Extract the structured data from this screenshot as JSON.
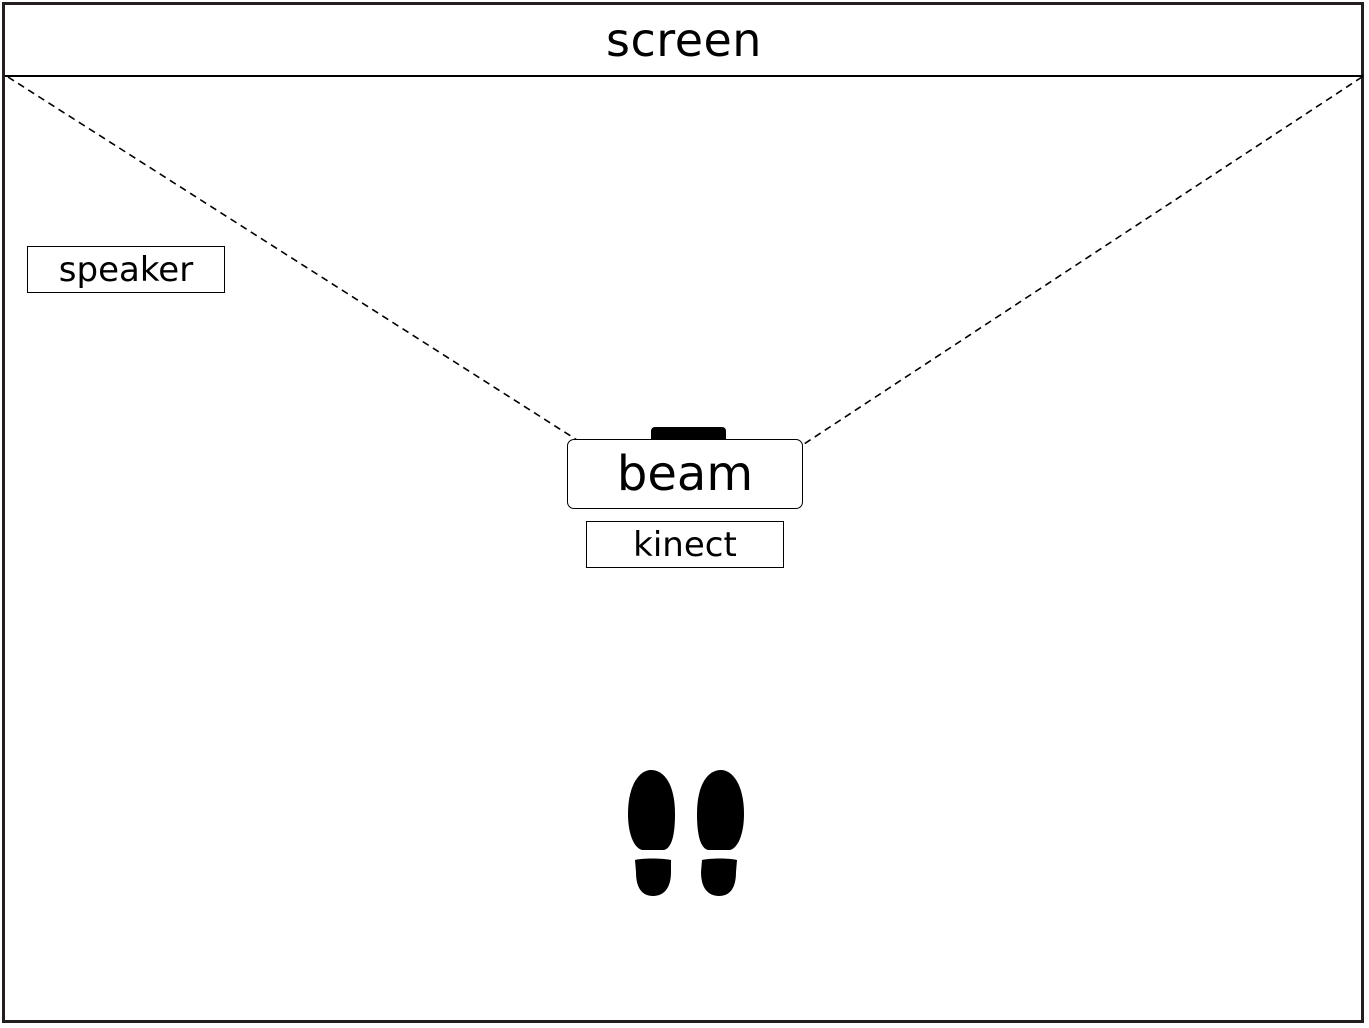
{
  "diagram": {
    "screen_label": "screen",
    "speaker_label": "speaker",
    "beam_label": "beam",
    "kinect_label": "kinect",
    "icons": {
      "footprints": "footprints-icon",
      "projector_lens": "projector-lens-icon"
    },
    "colors": {
      "line": "#000000",
      "border": "#231f20",
      "background": "#ffffff"
    }
  }
}
